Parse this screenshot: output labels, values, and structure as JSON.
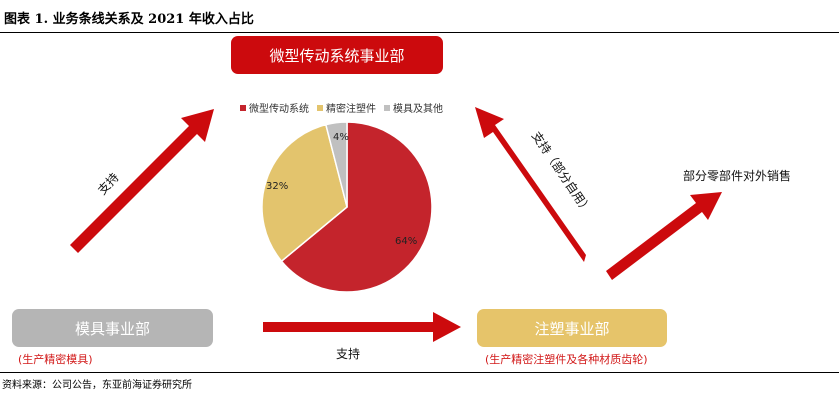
{
  "header": {
    "title": "图表 1.  业务条线关系及 2021 年收入占比"
  },
  "boxes": {
    "micro": "微型传动系统事业部",
    "mold": "模具事业部",
    "injection": "注塑事业部"
  },
  "sub_labels": {
    "mold": "(生产精密模具)",
    "injection": "(生产精密注塑件及各种材质齿轮)"
  },
  "arrow_labels": {
    "support_left": "支持",
    "support_bottom": "支持",
    "support_right": "支持（部分自用）",
    "parts_external": "部分零部件对外销售"
  },
  "colors": {
    "red": "#cc0a0d",
    "yellow": "#e6c46a",
    "gray": "#b5b5b5",
    "pie_red": "#c4242c",
    "pie_yellow": "#e3c46d",
    "pie_gray": "#c0c0c0"
  },
  "source": "资料来源：公司公告，东亚前海证券研究所",
  "chart_data": {
    "type": "pie",
    "categories": [
      "微型传动系统",
      "精密注塑件",
      "模具及其他"
    ],
    "values": [
      64,
      32,
      4
    ],
    "labels": [
      "64%",
      "32%",
      "4%"
    ],
    "legend_position": "top"
  }
}
